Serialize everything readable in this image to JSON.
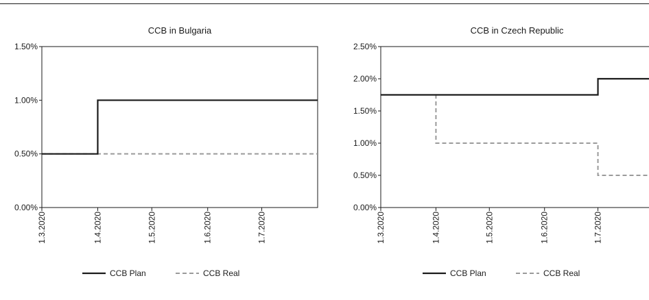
{
  "chart_data": [
    {
      "type": "line",
      "title": "CCB in Bulgaria",
      "xlabel": "",
      "ylabel": "",
      "x_ticks": [
        "1.3.2020",
        "1.4.2020",
        "1.5.2020",
        "1.6.2020",
        "1.7.2020"
      ],
      "xlim": [
        "2020-03-01",
        "2020-08-01"
      ],
      "y_ticks": [
        "0.00%",
        "0.50%",
        "1.00%",
        "1.50%"
      ],
      "ylim": [
        0,
        1.5
      ],
      "grid": false,
      "legend_position": "bottom",
      "series": [
        {
          "name": "CCB Plan",
          "style": "solid",
          "color": "#1a1a1a",
          "step_points": [
            {
              "x": "2020-03-01",
              "y": 0.5
            },
            {
              "x": "2020-04-01",
              "y": 1.0
            },
            {
              "x": "2020-08-01",
              "y": 1.0
            }
          ]
        },
        {
          "name": "CCB Real",
          "style": "dashed",
          "color": "#9a9a9a",
          "step_points": [
            {
              "x": "2020-03-01",
              "y": 0.5
            },
            {
              "x": "2020-08-01",
              "y": 0.5
            }
          ]
        }
      ]
    },
    {
      "type": "line",
      "title": "CCB in Czech Republic",
      "xlabel": "",
      "ylabel": "",
      "x_ticks": [
        "1.3.2020",
        "1.4.2020",
        "1.5.2020",
        "1.6.2020",
        "1.7.2020"
      ],
      "xlim": [
        "2020-03-01",
        "2020-08-01"
      ],
      "y_ticks": [
        "0.00%",
        "0.50%",
        "1.00%",
        "1.50%",
        "2.00%",
        "2.50%"
      ],
      "ylim": [
        0,
        2.5
      ],
      "grid": false,
      "legend_position": "bottom",
      "series": [
        {
          "name": "CCB Plan",
          "style": "solid",
          "color": "#1a1a1a",
          "step_points": [
            {
              "x": "2020-03-01",
              "y": 1.75
            },
            {
              "x": "2020-07-01",
              "y": 2.0
            },
            {
              "x": "2020-08-01",
              "y": 2.0
            }
          ]
        },
        {
          "name": "CCB Real",
          "style": "dashed",
          "color": "#9a9a9a",
          "step_points": [
            {
              "x": "2020-03-01",
              "y": 1.75
            },
            {
              "x": "2020-04-01",
              "y": 1.0
            },
            {
              "x": "2020-07-01",
              "y": 0.5
            },
            {
              "x": "2020-08-01",
              "y": 0.5
            }
          ]
        }
      ]
    }
  ]
}
